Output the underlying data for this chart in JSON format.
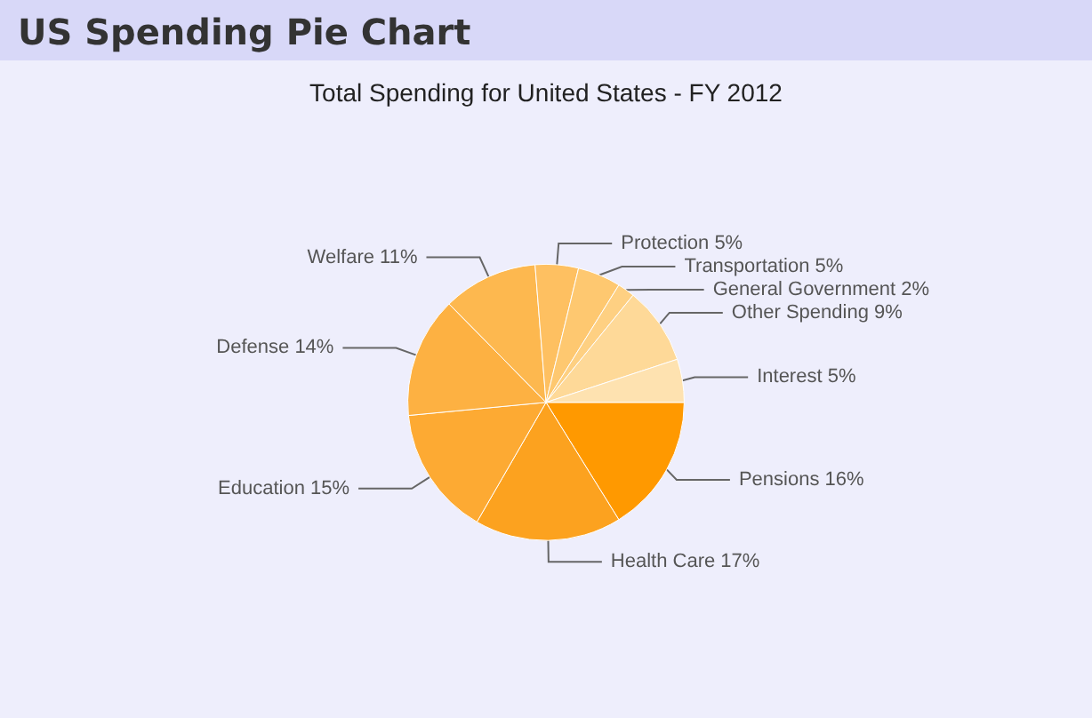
{
  "chart_data": {
    "type": "pie",
    "title": "US Spending Pie Chart",
    "subtitle": "Total Spending for United States - FY 2012",
    "categories": [
      "Pensions",
      "Health Care",
      "Education",
      "Defense",
      "Welfare",
      "Protection",
      "Transportation",
      "General Government",
      "Other Spending",
      "Interest"
    ],
    "values": [
      16,
      17,
      15,
      14,
      11,
      5,
      5,
      2,
      9,
      5
    ],
    "value_labels": [
      "16%",
      "17%",
      "15%",
      "14%",
      "11%",
      "5%",
      "5%",
      "2%",
      "9%",
      "5%"
    ],
    "colors": [
      "#ff9900",
      "#fca21f",
      "#fdaa33",
      "#fdb142",
      "#fdb84f",
      "#fec061",
      "#fec870",
      "#fed082",
      "#fed998",
      "#fee2b0"
    ],
    "legend": false
  }
}
